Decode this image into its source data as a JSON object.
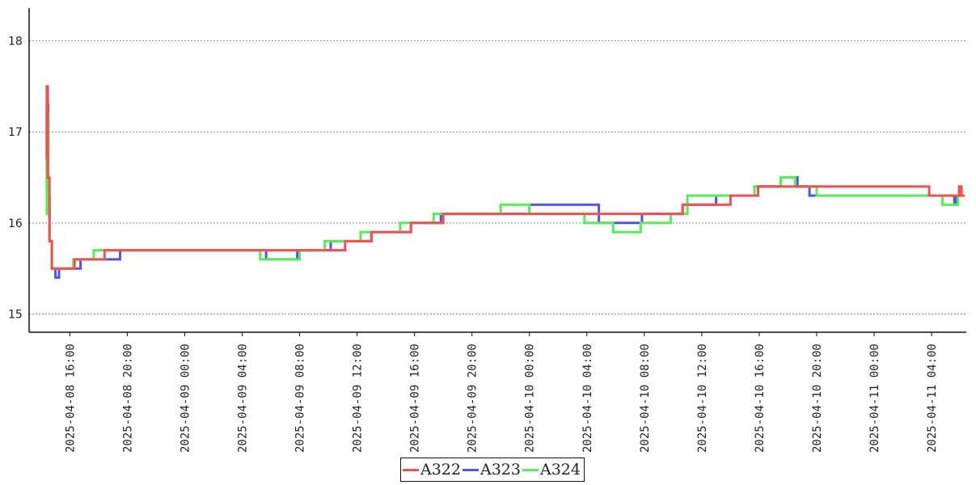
{
  "chart_data": {
    "type": "line",
    "title": "",
    "xlabel": "",
    "ylabel": "",
    "ylim": [
      14.8,
      18.36
    ],
    "yticks": [
      15,
      16,
      17,
      18
    ],
    "xlim": [
      "2025-04-08 13:10",
      "2025-04-11 06:25"
    ],
    "x_tick_labels": [
      "2025-04-08 16:00",
      "2025-04-08 20:00",
      "2025-04-09 00:00",
      "2025-04-09 04:00",
      "2025-04-09 08:00",
      "2025-04-09 12:00",
      "2025-04-09 16:00",
      "2025-04-09 20:00",
      "2025-04-10 00:00",
      "2025-04-10 04:00",
      "2025-04-10 08:00",
      "2025-04-10 12:00",
      "2025-04-10 16:00",
      "2025-04-10 20:00",
      "2025-04-11 00:00",
      "2025-04-11 04:00"
    ],
    "grid": "horizontal dotted",
    "legend": "bottom-center",
    "line_style": "step",
    "series": [
      {
        "name": "A322",
        "color": "#f05252",
        "points": [
          [
            "2025-04-08 14:20",
            16.7
          ],
          [
            "2025-04-08 14:24",
            17.5
          ],
          [
            "2025-04-08 14:28",
            16.5
          ],
          [
            "2025-04-08 14:35",
            15.8
          ],
          [
            "2025-04-08 14:45",
            15.5
          ],
          [
            "2025-04-08 16:20",
            15.6
          ],
          [
            "2025-04-08 18:25",
            15.7
          ],
          [
            "2025-04-09 11:10",
            15.8
          ],
          [
            "2025-04-09 13:00",
            15.9
          ],
          [
            "2025-04-09 15:45",
            16.0
          ],
          [
            "2025-04-09 18:00",
            16.1
          ],
          [
            "2025-04-10 10:40",
            16.2
          ],
          [
            "2025-04-10 14:00",
            16.3
          ],
          [
            "2025-04-10 15:55",
            16.4
          ],
          [
            "2025-04-11 03:50",
            16.3
          ],
          [
            "2025-04-11 05:55",
            16.4
          ],
          [
            "2025-04-11 06:05",
            16.3
          ]
        ]
      },
      {
        "name": "A323",
        "color": "#4f55f0",
        "points": [
          [
            "2025-04-08 14:20",
            16.4
          ],
          [
            "2025-04-08 14:24",
            17.3
          ],
          [
            "2025-04-08 14:30",
            16.3
          ],
          [
            "2025-04-08 14:35",
            15.8
          ],
          [
            "2025-04-08 14:45",
            15.5
          ],
          [
            "2025-04-08 15:00",
            15.4
          ],
          [
            "2025-04-08 15:15",
            15.5
          ],
          [
            "2025-04-08 16:45",
            15.6
          ],
          [
            "2025-04-08 18:25",
            15.6
          ],
          [
            "2025-04-08 19:30",
            15.7
          ],
          [
            "2025-04-09 05:40",
            15.6
          ],
          [
            "2025-04-09 07:50",
            15.7
          ],
          [
            "2025-04-09 10:10",
            15.8
          ],
          [
            "2025-04-09 13:00",
            15.9
          ],
          [
            "2025-04-09 15:45",
            16.0
          ],
          [
            "2025-04-09 17:50",
            16.1
          ],
          [
            "2025-04-10 00:00",
            16.2
          ],
          [
            "2025-04-10 04:50",
            16.0
          ],
          [
            "2025-04-10 07:50",
            16.1
          ],
          [
            "2025-04-10 10:40",
            16.2
          ],
          [
            "2025-04-10 13:00",
            16.3
          ],
          [
            "2025-04-10 15:55",
            16.4
          ],
          [
            "2025-04-10 17:30",
            16.5
          ],
          [
            "2025-04-10 18:40",
            16.4
          ],
          [
            "2025-04-10 19:30",
            16.3
          ],
          [
            "2025-04-11 05:35",
            16.2
          ],
          [
            "2025-04-11 05:45",
            16.3
          ]
        ]
      },
      {
        "name": "A324",
        "color": "#55ee55",
        "points": [
          [
            "2025-04-08 14:20",
            16.1
          ],
          [
            "2025-04-08 14:24",
            17.2
          ],
          [
            "2025-04-08 14:30",
            16.2
          ],
          [
            "2025-04-08 14:35",
            15.8
          ],
          [
            "2025-04-08 14:45",
            15.5
          ],
          [
            "2025-04-08 16:15",
            15.6
          ],
          [
            "2025-04-08 17:40",
            15.7
          ],
          [
            "2025-04-09 05:15",
            15.6
          ],
          [
            "2025-04-09 08:00",
            15.7
          ],
          [
            "2025-04-09 09:45",
            15.8
          ],
          [
            "2025-04-09 12:15",
            15.9
          ],
          [
            "2025-04-09 15:00",
            16.0
          ],
          [
            "2025-04-09 17:20",
            16.1
          ],
          [
            "2025-04-09 22:00",
            16.2
          ],
          [
            "2025-04-10 00:00",
            16.1
          ],
          [
            "2025-04-10 03:50",
            16.0
          ],
          [
            "2025-04-10 05:50",
            15.9
          ],
          [
            "2025-04-10 07:45",
            16.0
          ],
          [
            "2025-04-10 09:50",
            16.1
          ],
          [
            "2025-04-10 11:00",
            16.2
          ],
          [
            "2025-04-10 11:00",
            16.3
          ],
          [
            "2025-04-10 15:40",
            16.4
          ],
          [
            "2025-04-10 17:30",
            16.5
          ],
          [
            "2025-04-10 18:30",
            16.4
          ],
          [
            "2025-04-10 20:00",
            16.3
          ],
          [
            "2025-04-11 04:45",
            16.2
          ],
          [
            "2025-04-11 05:50",
            16.3
          ]
        ]
      }
    ]
  }
}
